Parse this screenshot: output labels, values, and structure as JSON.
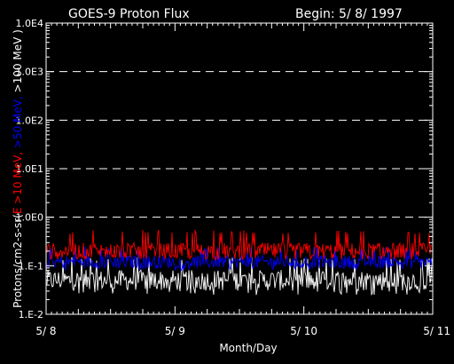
{
  "title": "GOES-9 Proton Flux",
  "begin_label": "Begin: 5/ 8/ 1997",
  "chart_data": {
    "type": "line",
    "title": "GOES-9 Proton Flux",
    "xlabel": "Month/Day",
    "ylabel_parts": [
      {
        "text": "Protons/cm2-s-sr(",
        "color": "#ffffff"
      },
      {
        "text": "E >10 MeV, ",
        "color": "#ff0000"
      },
      {
        "text": ">50 MeV, ",
        "color": "#0000ff"
      },
      {
        "text": ">100 MeV )",
        "color": "#ffffff"
      }
    ],
    "y_scale": "log",
    "ylim": [
      0.01,
      10000
    ],
    "y_ticks": [
      {
        "value": 10000,
        "label": "1.0E4"
      },
      {
        "value": 1000,
        "label": "1.0E3"
      },
      {
        "value": 100,
        "label": "1.0E2"
      },
      {
        "value": 10,
        "label": "1.0E1"
      },
      {
        "value": 1,
        "label": "1.0E0"
      },
      {
        "value": 0.1,
        "label": "1.E-1"
      },
      {
        "value": 0.01,
        "label": "1.E-2"
      }
    ],
    "gridlines_y": [
      1000,
      100,
      10,
      1
    ],
    "x_range": [
      "1997-05-08",
      "1997-05-11"
    ],
    "x_ticks": [
      {
        "value": "1997-05-08",
        "label": "5/ 8"
      },
      {
        "value": "1997-05-09",
        "label": "5/ 9"
      },
      {
        "value": "1997-05-10",
        "label": "5/ 10"
      },
      {
        "value": "1997-05-11",
        "label": "5/ 11"
      }
    ],
    "series": [
      {
        "name": ">10 MeV",
        "color": "#ff0000",
        "typical": 0.2,
        "min": 0.13,
        "max": 0.55
      },
      {
        "name": ">50 MeV",
        "color": "#0000ff",
        "typical": 0.12,
        "min": 0.08,
        "max": 0.25
      },
      {
        "name": ">100 MeV",
        "color": "#ffffff",
        "typical": 0.05,
        "min": 0.025,
        "max": 0.15
      }
    ]
  }
}
